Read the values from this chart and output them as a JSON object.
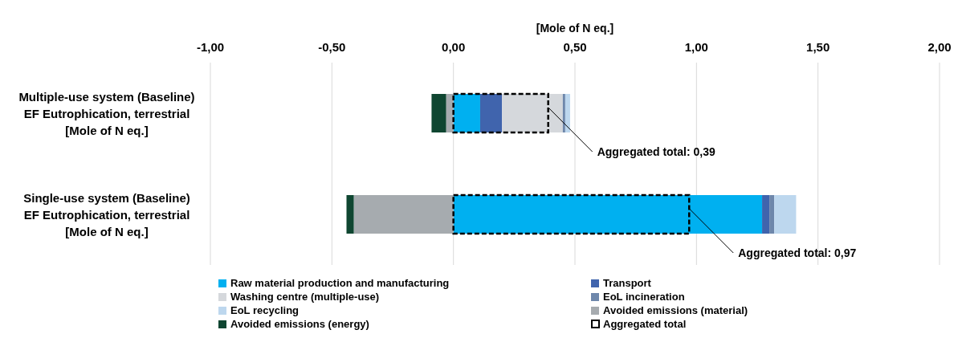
{
  "chart_data": [
    {
      "type": "bar",
      "orientation": "horizontal",
      "stacked": true,
      "xlabel": "[Mole of N eq.]",
      "categories": [
        "Multiple-use system (Baseline)\nEF Eutrophication, terrestrial\n[Mole of N eq.]",
        "Single-use system (Baseline)\nEF Eutrophication, terrestrial\n[Mole of N eq.]"
      ],
      "series": [
        {
          "name": "Raw material production and manufacturing",
          "color": "#00b0f0",
          "values": [
            0.11,
            1.27
          ]
        },
        {
          "name": "Transport",
          "color": "#4064ad",
          "values": [
            0.09,
            0.03
          ]
        },
        {
          "name": "Washing centre (multiple-use)",
          "color": "#d5d8dc",
          "values": [
            0.25,
            null
          ]
        },
        {
          "name": "EoL incineration",
          "color": "#6e87ab",
          "values": [
            0.01,
            0.02
          ]
        },
        {
          "name": "EoL recycling",
          "color": "#bdd7ee",
          "values": [
            0.02,
            0.09
          ]
        },
        {
          "name": "Avoided emissions (material)",
          "color": "#a6abaf",
          "values": [
            -0.03,
            -0.41
          ]
        },
        {
          "name": "Avoided emissions (energy)",
          "color": "#0f4631",
          "values": [
            -0.06,
            -0.03
          ]
        }
      ],
      "xlim": [
        -1,
        2
      ],
      "xticks": [
        {
          "value": -1,
          "label": "-1,00"
        },
        {
          "value": -0.5,
          "label": "-0,50"
        },
        {
          "value": 0,
          "label": "0,00"
        },
        {
          "value": 0.5,
          "label": "0,50"
        },
        {
          "value": 1,
          "label": "1,00"
        },
        {
          "value": 1.5,
          "label": "1,50"
        },
        {
          "value": 2,
          "label": "2,00"
        }
      ],
      "grid": "x",
      "legend": "bottom"
    },
    {
      "type": "bar",
      "orientation": "horizontal",
      "categories": [
        null,
        null
      ],
      "series": [
        {
          "name": "Aggregated total",
          "color": "#000000",
          "line_style": "dashed",
          "values": [
            0.39,
            0.97
          ],
          "value_labels": [
            "Aggregated total: 0,39",
            "Aggregated total: 0,97"
          ]
        }
      ],
      "xlim": [
        -1,
        2
      ],
      "legend": "bottom"
    }
  ]
}
